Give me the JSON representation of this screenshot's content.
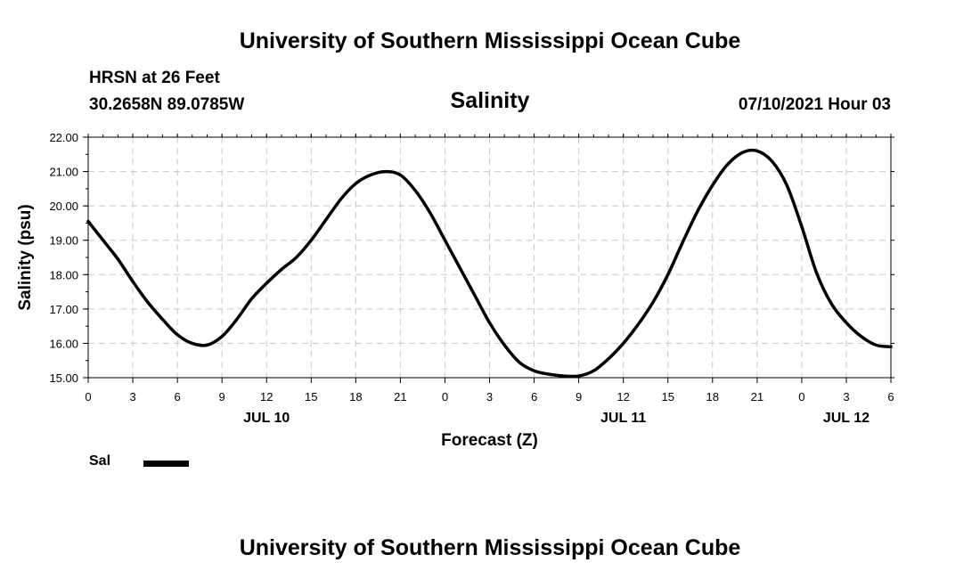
{
  "page": {
    "top_title": "University of Southern Mississippi Ocean Cube",
    "bottom_title": "University of Southern Mississippi Ocean Cube",
    "station": "HRSN at 26 Feet",
    "coordinates": "30.2658N  89.0785W",
    "subtitle": "Salinity",
    "datetime": "07/10/2021 Hour 03",
    "legend_label": "Sal"
  },
  "chart_data": {
    "type": "line",
    "title": "Salinity",
    "xlabel": "Forecast (Z)",
    "ylabel": "Salinity (psu)",
    "xlim": [
      0,
      54
    ],
    "ylim": [
      15,
      22
    ],
    "grid": true,
    "x_ticks": [
      0,
      3,
      6,
      9,
      12,
      15,
      18,
      21,
      24,
      27,
      30,
      33,
      36,
      39,
      42,
      45,
      48,
      51,
      54
    ],
    "x_tick_labels": [
      "0",
      "3",
      "6",
      "9",
      "12",
      "15",
      "18",
      "21",
      "0",
      "3",
      "6",
      "9",
      "12",
      "15",
      "18",
      "21",
      "0",
      "3",
      "6"
    ],
    "y_ticks": [
      15,
      16,
      17,
      18,
      19,
      20,
      21,
      22
    ],
    "y_tick_labels": [
      "15.00",
      "16.00",
      "17.00",
      "18.00",
      "19.00",
      "20.00",
      "21.00",
      "22.00"
    ],
    "date_labels": [
      {
        "x": 12,
        "label": "JUL 10"
      },
      {
        "x": 36,
        "label": "JUL 11"
      },
      {
        "x": 51,
        "label": "JUL 12"
      }
    ],
    "legend": [
      "Sal"
    ],
    "series": [
      {
        "name": "Sal",
        "color": "#000000",
        "x": [
          0,
          1,
          2,
          3,
          4,
          5,
          6,
          7,
          8,
          9,
          10,
          11,
          12,
          13,
          14,
          15,
          16,
          17,
          18,
          19,
          20,
          21,
          22,
          23,
          24,
          25,
          26,
          27,
          28,
          29,
          30,
          31,
          32,
          33,
          34,
          35,
          36,
          37,
          38,
          39,
          40,
          41,
          42,
          43,
          44,
          45,
          46,
          47,
          48,
          49,
          50,
          51,
          52,
          53,
          54
        ],
        "values": [
          19.55,
          19.0,
          18.45,
          17.8,
          17.2,
          16.7,
          16.25,
          16.0,
          15.95,
          16.2,
          16.7,
          17.3,
          17.75,
          18.15,
          18.5,
          19.0,
          19.6,
          20.2,
          20.65,
          20.9,
          21.0,
          20.9,
          20.45,
          19.8,
          19.0,
          18.2,
          17.4,
          16.6,
          15.95,
          15.45,
          15.2,
          15.1,
          15.05,
          15.05,
          15.2,
          15.55,
          16.0,
          16.55,
          17.2,
          18.0,
          18.95,
          19.85,
          20.6,
          21.2,
          21.55,
          21.6,
          21.3,
          20.6,
          19.4,
          18.05,
          17.15,
          16.6,
          16.2,
          15.95,
          15.9
        ]
      }
    ]
  }
}
